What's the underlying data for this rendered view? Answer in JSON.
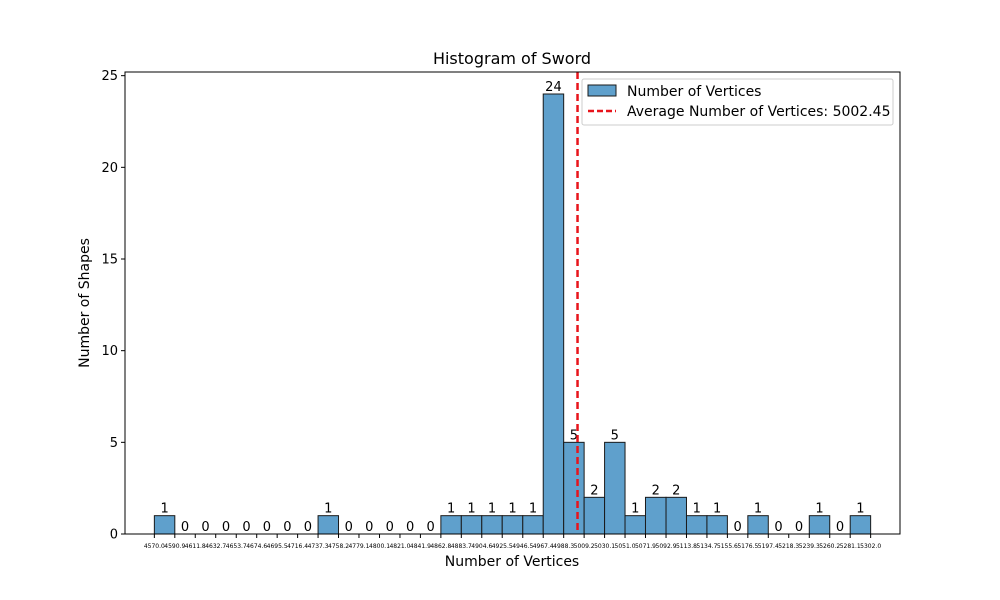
{
  "chart_data": {
    "type": "bar",
    "title": "Histogram of Sword",
    "xlabel": "Number of Vertices",
    "ylabel": "Number of Shapes",
    "ylim": [
      0,
      25.2
    ],
    "xlim": [
      4540.0,
      5332.0
    ],
    "yticks": [
      0,
      5,
      10,
      15,
      20,
      25
    ],
    "bin_edges": [
      4570.0,
      4590.9,
      4611.8,
      4632.7,
      4653.7,
      4674.6,
      4695.5,
      4716.4,
      4737.3,
      4758.2,
      4779.1,
      4800.1,
      4821.0,
      4841.9,
      4862.8,
      4883.7,
      4904.6,
      4925.5,
      4946.5,
      4967.4,
      4988.3,
      5009.2,
      5030.1,
      5051.0,
      5071.9,
      5092.9,
      5113.8,
      5134.7,
      5155.6,
      5176.5,
      5197.4,
      5218.3,
      5239.3,
      5260.2,
      5281.1,
      5302.0
    ],
    "xtick_labels": [
      "4570.0",
      "4590.9",
      "4611.8",
      "4632.7",
      "4653.7",
      "4674.6",
      "4695.5",
      "4716.4",
      "4737.3",
      "4758.2",
      "4779.1",
      "4800.1",
      "4821.0",
      "4841.9",
      "4862.8",
      "4883.7",
      "4904.6",
      "4925.5",
      "4946.5",
      "4967.4",
      "4988.3",
      "5009.2",
      "5030.1",
      "5051.0",
      "5071.9",
      "5092.9",
      "5113.8",
      "5134.7",
      "5155.6",
      "5176.5",
      "5197.4",
      "5218.3",
      "5239.3",
      "5260.2",
      "5281.1",
      "5302.0"
    ],
    "series": [
      {
        "name": "Number of Vertices",
        "values": [
          1,
          0,
          0,
          0,
          0,
          0,
          0,
          0,
          1,
          0,
          0,
          0,
          0,
          0,
          1,
          1,
          1,
          1,
          1,
          24,
          5,
          2,
          5,
          1,
          2,
          2,
          1,
          1,
          0,
          1,
          0,
          0,
          1,
          0,
          1
        ],
        "color": "#5fa0cc",
        "edge_color": "#1a1a1a"
      }
    ],
    "average_line": {
      "label": "Average Number of Vertices: 5002.45",
      "value": 5002.45,
      "color": "#e8141b"
    },
    "legend_placement": "top-right",
    "grid": false
  }
}
